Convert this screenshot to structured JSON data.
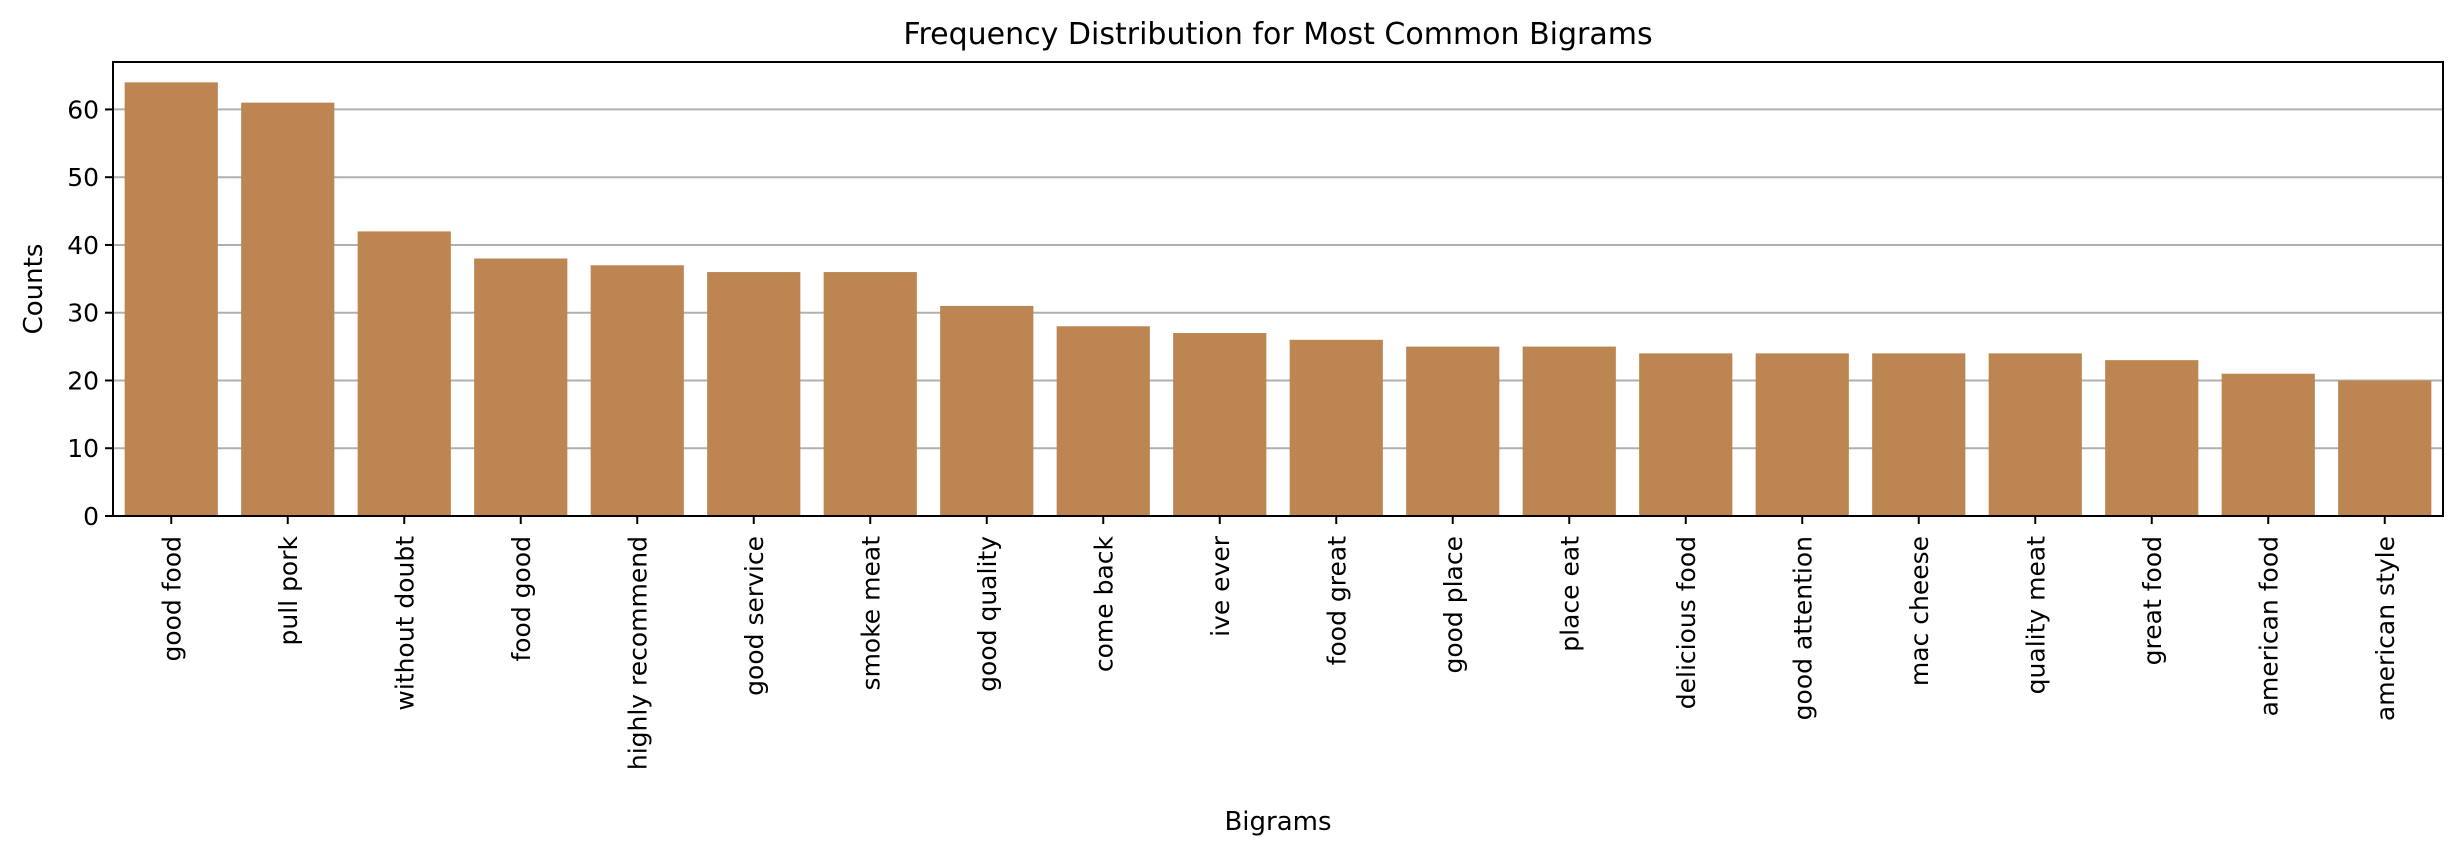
{
  "chart_data": {
    "type": "bar",
    "title": "Frequency Distribution for Most Common Bigrams",
    "xlabel": "Bigrams",
    "ylabel": "Counts",
    "categories": [
      "good food",
      "pull pork",
      "without doubt",
      "food good",
      "highly recommend",
      "good service",
      "smoke meat",
      "good quality",
      "come back",
      "ive ever",
      "food great",
      "good place",
      "place eat",
      "delicious food",
      "good attention",
      "mac cheese",
      "quality meat",
      "great food",
      "american food",
      "american style"
    ],
    "values": [
      64,
      61,
      42,
      38,
      37,
      36,
      36,
      31,
      28,
      27,
      26,
      25,
      25,
      24,
      24,
      24,
      24,
      23,
      21,
      20
    ],
    "ylim": [
      0,
      67
    ],
    "yticks": [
      0,
      10,
      20,
      30,
      40,
      50,
      60
    ],
    "grid": "y",
    "bar_color": "#bc8551",
    "legend": "none"
  }
}
